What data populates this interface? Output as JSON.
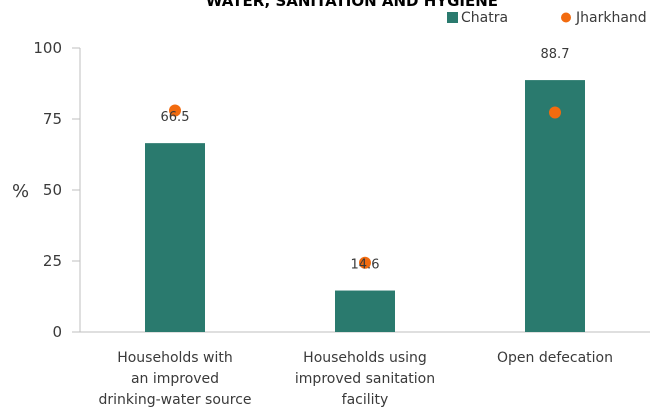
{
  "chart_data": {
    "type": "bar",
    "title": "WATER, SANITATION AND HYGIENE",
    "ylabel": "%",
    "xlabel": "",
    "ylim": [
      0,
      100
    ],
    "yticks": [
      0,
      25,
      50,
      75,
      100
    ],
    "grid": false,
    "legend_position": "top-right",
    "categories": [
      [
        "Households with",
        "an improved",
        "drinking-water source"
      ],
      [
        "Households using",
        "improved sanitation",
        "facility"
      ],
      [
        "Open defecation"
      ]
    ],
    "series": [
      {
        "name": "Chatra",
        "kind": "bar",
        "color": "#2a7a6e",
        "values": [
          66.5,
          14.6,
          88.7
        ],
        "labels": [
          "66.5",
          "14.6",
          "88.7"
        ]
      },
      {
        "name": "Jharkhand",
        "kind": "marker",
        "color": "#f26b0f",
        "values": [
          78.0,
          24.4,
          77.3
        ]
      }
    ]
  }
}
